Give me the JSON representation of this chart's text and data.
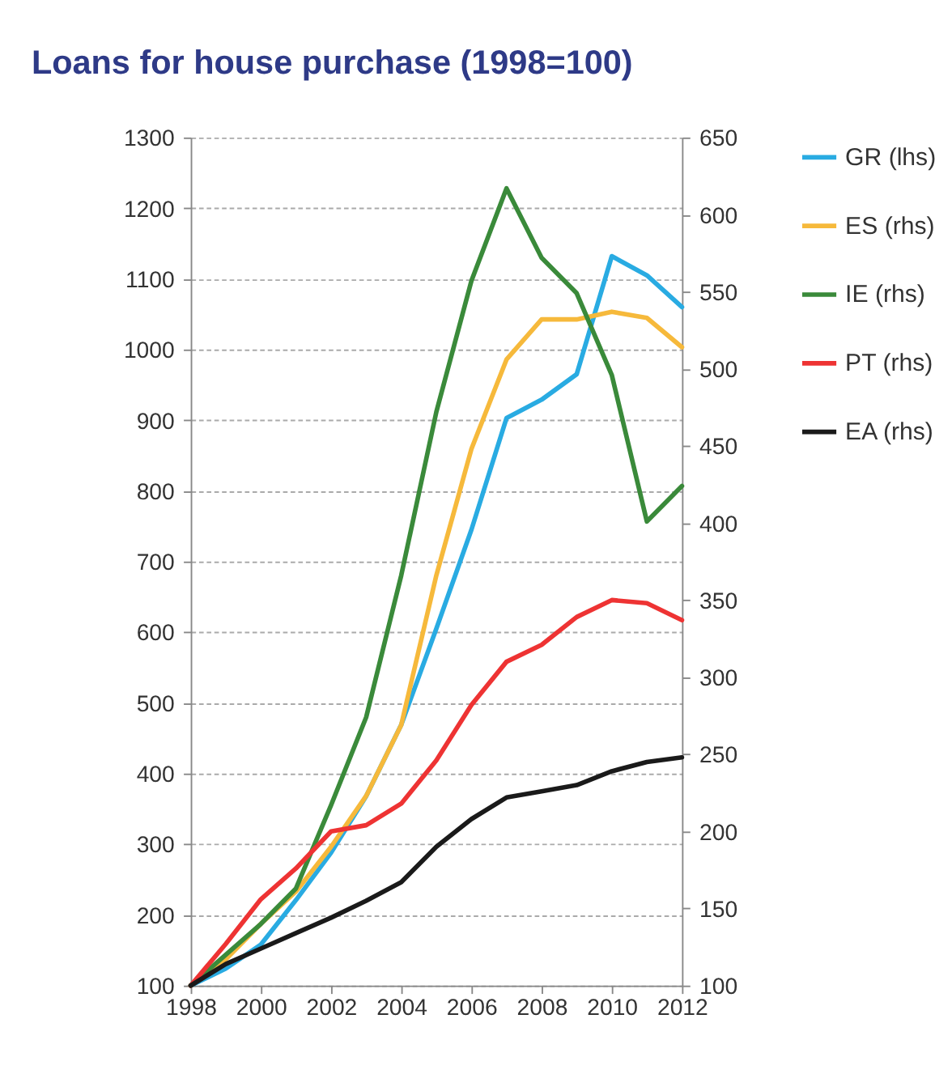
{
  "chart_data": {
    "type": "line",
    "title": "Loans for house purchase (1998=100)",
    "x": [
      1998,
      1999,
      2000,
      2001,
      2002,
      2003,
      2004,
      2005,
      2006,
      2007,
      2008,
      2009,
      2010,
      2011,
      2012
    ],
    "series": [
      {
        "name": "GR (lhs)",
        "color": "#29abe2",
        "values": [
          100,
          124,
          158,
          221,
          288,
          368,
          469,
          605,
          745,
          903,
          929,
          965,
          1132,
          1105,
          1060
        ]
      },
      {
        "name": "ES (rhs)",
        "color": "#f6b93b",
        "axis": "y2",
        "values": [
          100,
          117,
          140,
          161,
          190,
          223,
          269,
          366,
          448,
          506,
          532,
          532,
          537,
          533,
          514
        ]
      },
      {
        "name": "IE (rhs)",
        "color": "#3a8a3a",
        "axis": "y2",
        "values": [
          100,
          120,
          140,
          163,
          217,
          274,
          366,
          472,
          557,
          617,
          572,
          549,
          496,
          401,
          424
        ]
      },
      {
        "name": "PT (rhs)",
        "color": "#ee3333",
        "axis": "y2",
        "values": [
          100,
          127,
          156,
          176,
          200,
          204,
          218,
          246,
          282,
          310,
          321,
          339,
          350,
          348,
          337
        ]
      },
      {
        "name": "EA (rhs)",
        "color": "#1a1a1a",
        "axis": "y2",
        "values": [
          100,
          114,
          124,
          134,
          144,
          155,
          167,
          190,
          208,
          222,
          226,
          230,
          239,
          245,
          248
        ]
      }
    ],
    "xlim": [
      1998,
      2012
    ],
    "xticks": [
      1998,
      2000,
      2002,
      2004,
      2006,
      2008,
      2010,
      2012
    ],
    "ylim": [
      100,
      1300
    ],
    "yticks": [
      100,
      200,
      300,
      400,
      500,
      600,
      700,
      800,
      900,
      1000,
      1100,
      1200,
      1300
    ],
    "y2lim": [
      100,
      650
    ],
    "y2ticks": [
      100,
      150,
      200,
      250,
      300,
      350,
      400,
      450,
      500,
      550,
      600,
      650
    ],
    "grid": "y",
    "legend": "right",
    "marker": "none",
    "line_style": "solid"
  }
}
